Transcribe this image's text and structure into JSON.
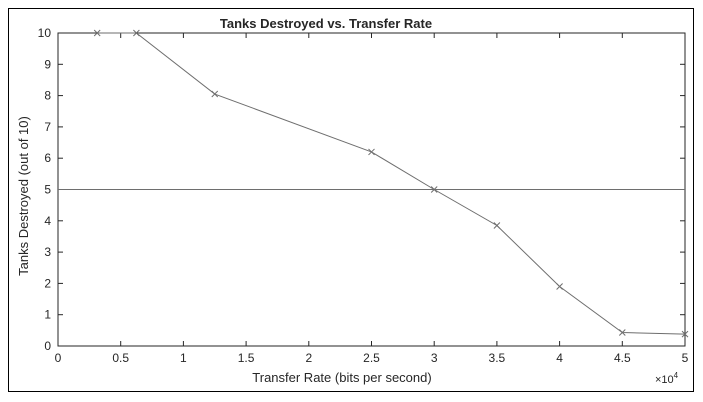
{
  "chart_data": {
    "type": "line",
    "title": "Tanks Destroyed vs. Transfer Rate",
    "xlabel": "Transfer Rate (bits per second)",
    "ylabel": "Tanks Destroyed (out of 10)",
    "x_exponent_label": "×10",
    "x_exponent_power": "4",
    "xlim": [
      0,
      5
    ],
    "ylim": [
      0,
      10
    ],
    "x_ticks": [
      "0",
      "0.5",
      "1",
      "1.5",
      "2",
      "2.5",
      "3",
      "3.5",
      "4",
      "4.5",
      "5"
    ],
    "y_ticks": [
      "0",
      "1",
      "2",
      "3",
      "4",
      "5",
      "6",
      "7",
      "8",
      "9",
      "10"
    ],
    "grid": false,
    "series": [
      {
        "marker": "x",
        "color": "#6e6e6e",
        "x": [
          0.3125,
          0.625,
          1.25,
          2.5,
          3.0,
          3.5,
          4.0,
          4.5,
          5.0
        ],
        "y": [
          10,
          10,
          8.05,
          6.2,
          5.0,
          3.85,
          1.9,
          0.43,
          0.38
        ]
      }
    ],
    "reference_line": {
      "y": 5,
      "color": "#6e6e6e"
    }
  }
}
